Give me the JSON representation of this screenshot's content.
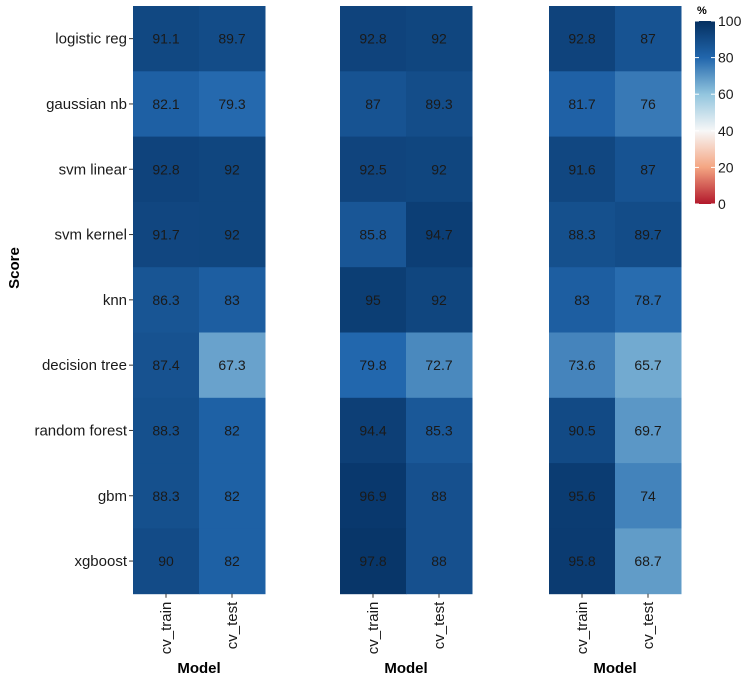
{
  "chart_data": {
    "type": "heatmap",
    "ylabel": "Score",
    "xlabel": "Model",
    "rows": [
      "logistic reg",
      "gaussian nb",
      "svm linear",
      "svm kernel",
      "knn",
      "decision tree",
      "random forest",
      "gbm",
      "xgboost"
    ],
    "columns": [
      "cv_train",
      "cv_test"
    ],
    "panels": [
      {
        "values": [
          [
            91.1,
            89.7
          ],
          [
            82.1,
            79.3
          ],
          [
            92.8,
            92
          ],
          [
            91.7,
            92
          ],
          [
            86.3,
            83
          ],
          [
            87.4,
            67.3
          ],
          [
            88.3,
            82
          ],
          [
            88.3,
            82
          ],
          [
            90,
            82
          ]
        ]
      },
      {
        "values": [
          [
            92.8,
            92
          ],
          [
            87,
            89.3
          ],
          [
            92.5,
            92
          ],
          [
            85.8,
            94.7
          ],
          [
            95,
            92
          ],
          [
            79.8,
            72.7
          ],
          [
            94.4,
            85.3
          ],
          [
            96.9,
            88
          ],
          [
            97.8,
            88
          ]
        ]
      },
      {
        "values": [
          [
            92.8,
            87
          ],
          [
            81.7,
            76
          ],
          [
            91.6,
            87
          ],
          [
            88.3,
            89.7
          ],
          [
            83,
            78.7
          ],
          [
            73.6,
            65.7
          ],
          [
            90.5,
            69.7
          ],
          [
            95.6,
            74
          ],
          [
            95.8,
            68.7
          ]
        ]
      }
    ],
    "legend": {
      "title": "%",
      "min": 0,
      "max": 100,
      "ticks": [
        0,
        20,
        40,
        60,
        80,
        100
      ],
      "placement": "top-right",
      "colors": [
        "#b2182b",
        "#f4a582",
        "#f7f7f7",
        "#92c5de",
        "#2166ac",
        "#053061"
      ]
    }
  }
}
